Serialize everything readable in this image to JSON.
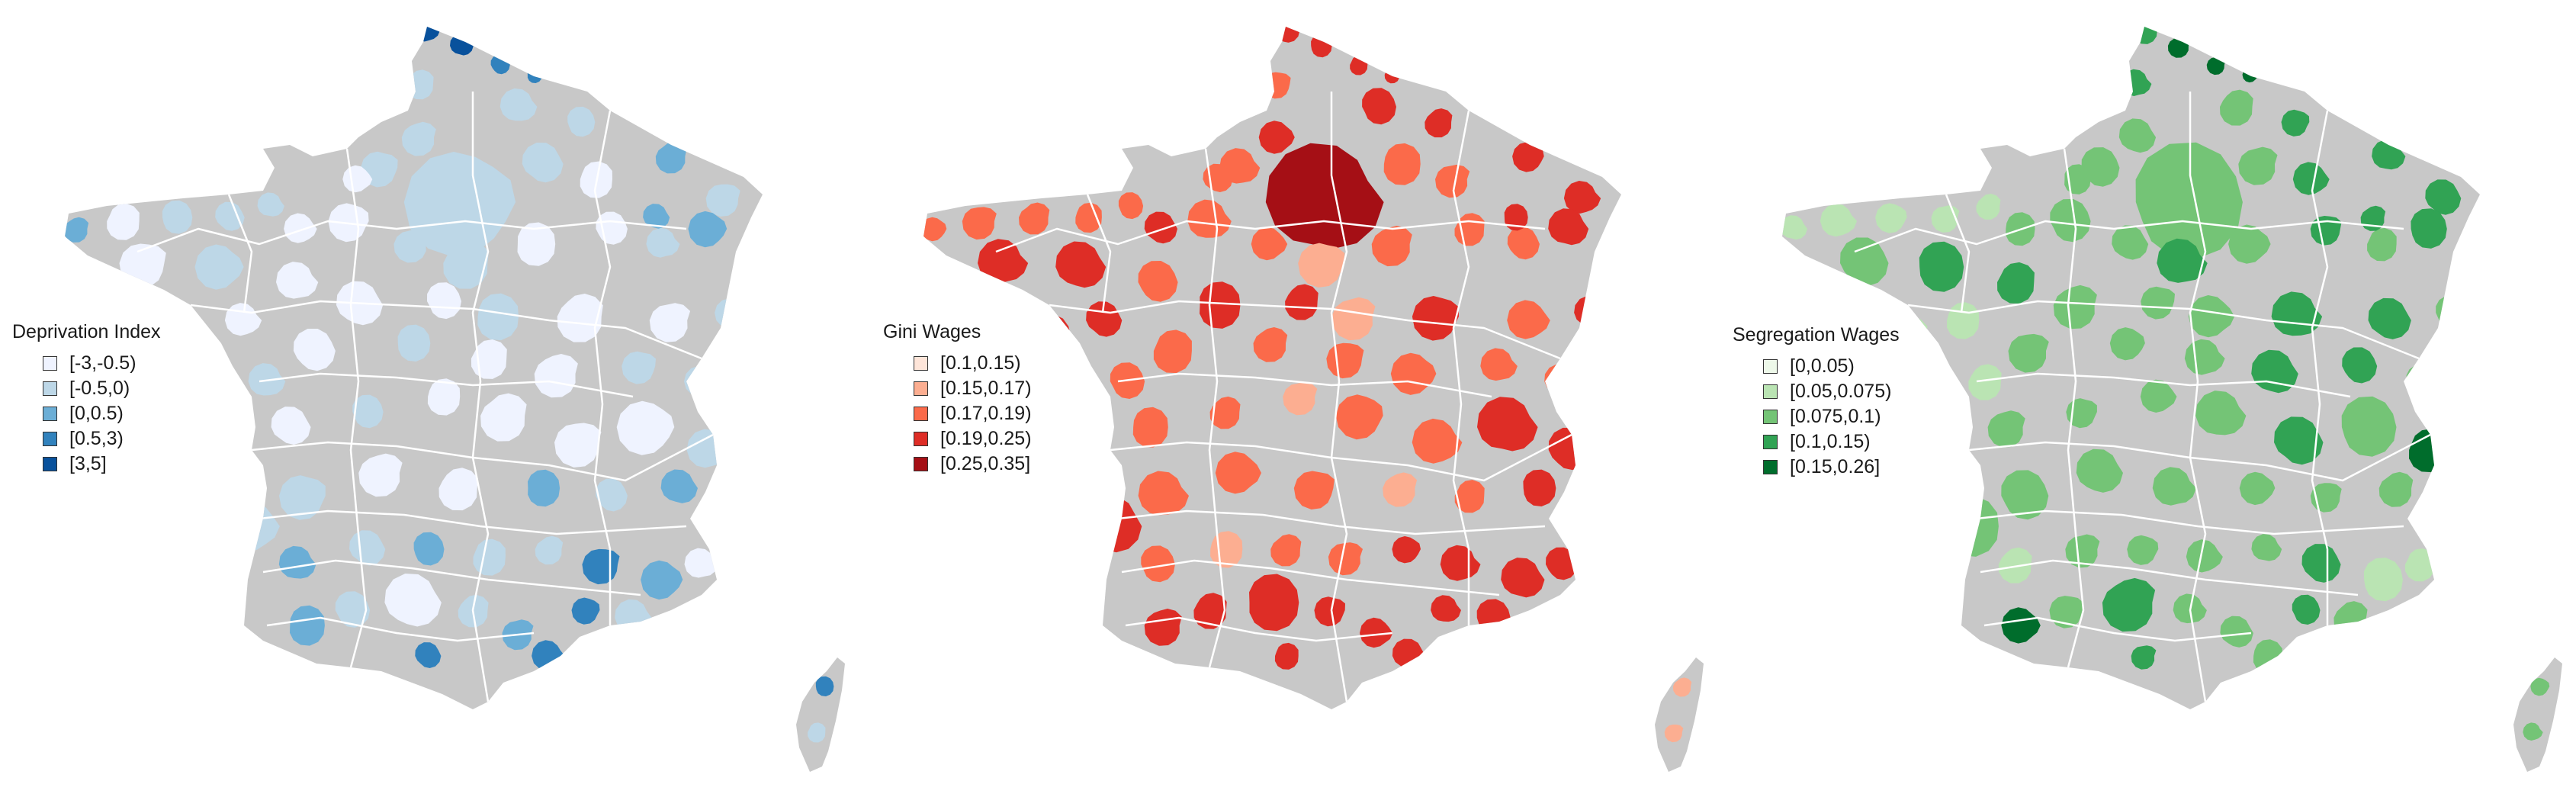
{
  "base_color": "#c8c8c8",
  "border_color": "#ffffff",
  "maps": [
    {
      "legend_title": "Deprivation Index",
      "classes": [
        {
          "label": "[-3,-0.5)",
          "color": "#eff3ff"
        },
        {
          "label": "[-0.5,0)",
          "color": "#bdd7e7"
        },
        {
          "label": "[0,0.5)",
          "color": "#6baed6"
        },
        {
          "label": "[0.5,3)",
          "color": "#3182bd"
        },
        {
          "label": "[3,5]",
          "color": "#08519c"
        }
      ]
    },
    {
      "legend_title": "Gini Wages",
      "classes": [
        {
          "label": "[0.1,0.15)",
          "color": "#fee5d9"
        },
        {
          "label": "[0.15,0.17)",
          "color": "#fcae91"
        },
        {
          "label": "[0.17,0.19)",
          "color": "#fb6a4a"
        },
        {
          "label": "[0.19,0.25)",
          "color": "#de2d26"
        },
        {
          "label": "[0.25,0.35]",
          "color": "#a50f15"
        }
      ]
    },
    {
      "legend_title": "Segregation Wages",
      "classes": [
        {
          "label": "[0,0.05)",
          "color": "#edf8e9"
        },
        {
          "label": "[0.05,0.075)",
          "color": "#bae4b3"
        },
        {
          "label": "[0.075,0.1)",
          "color": "#74c476"
        },
        {
          "label": "[0.1,0.15)",
          "color": "#31a354"
        },
        {
          "label": "[0.15,0.26]",
          "color": "#006d2c"
        }
      ]
    }
  ]
}
